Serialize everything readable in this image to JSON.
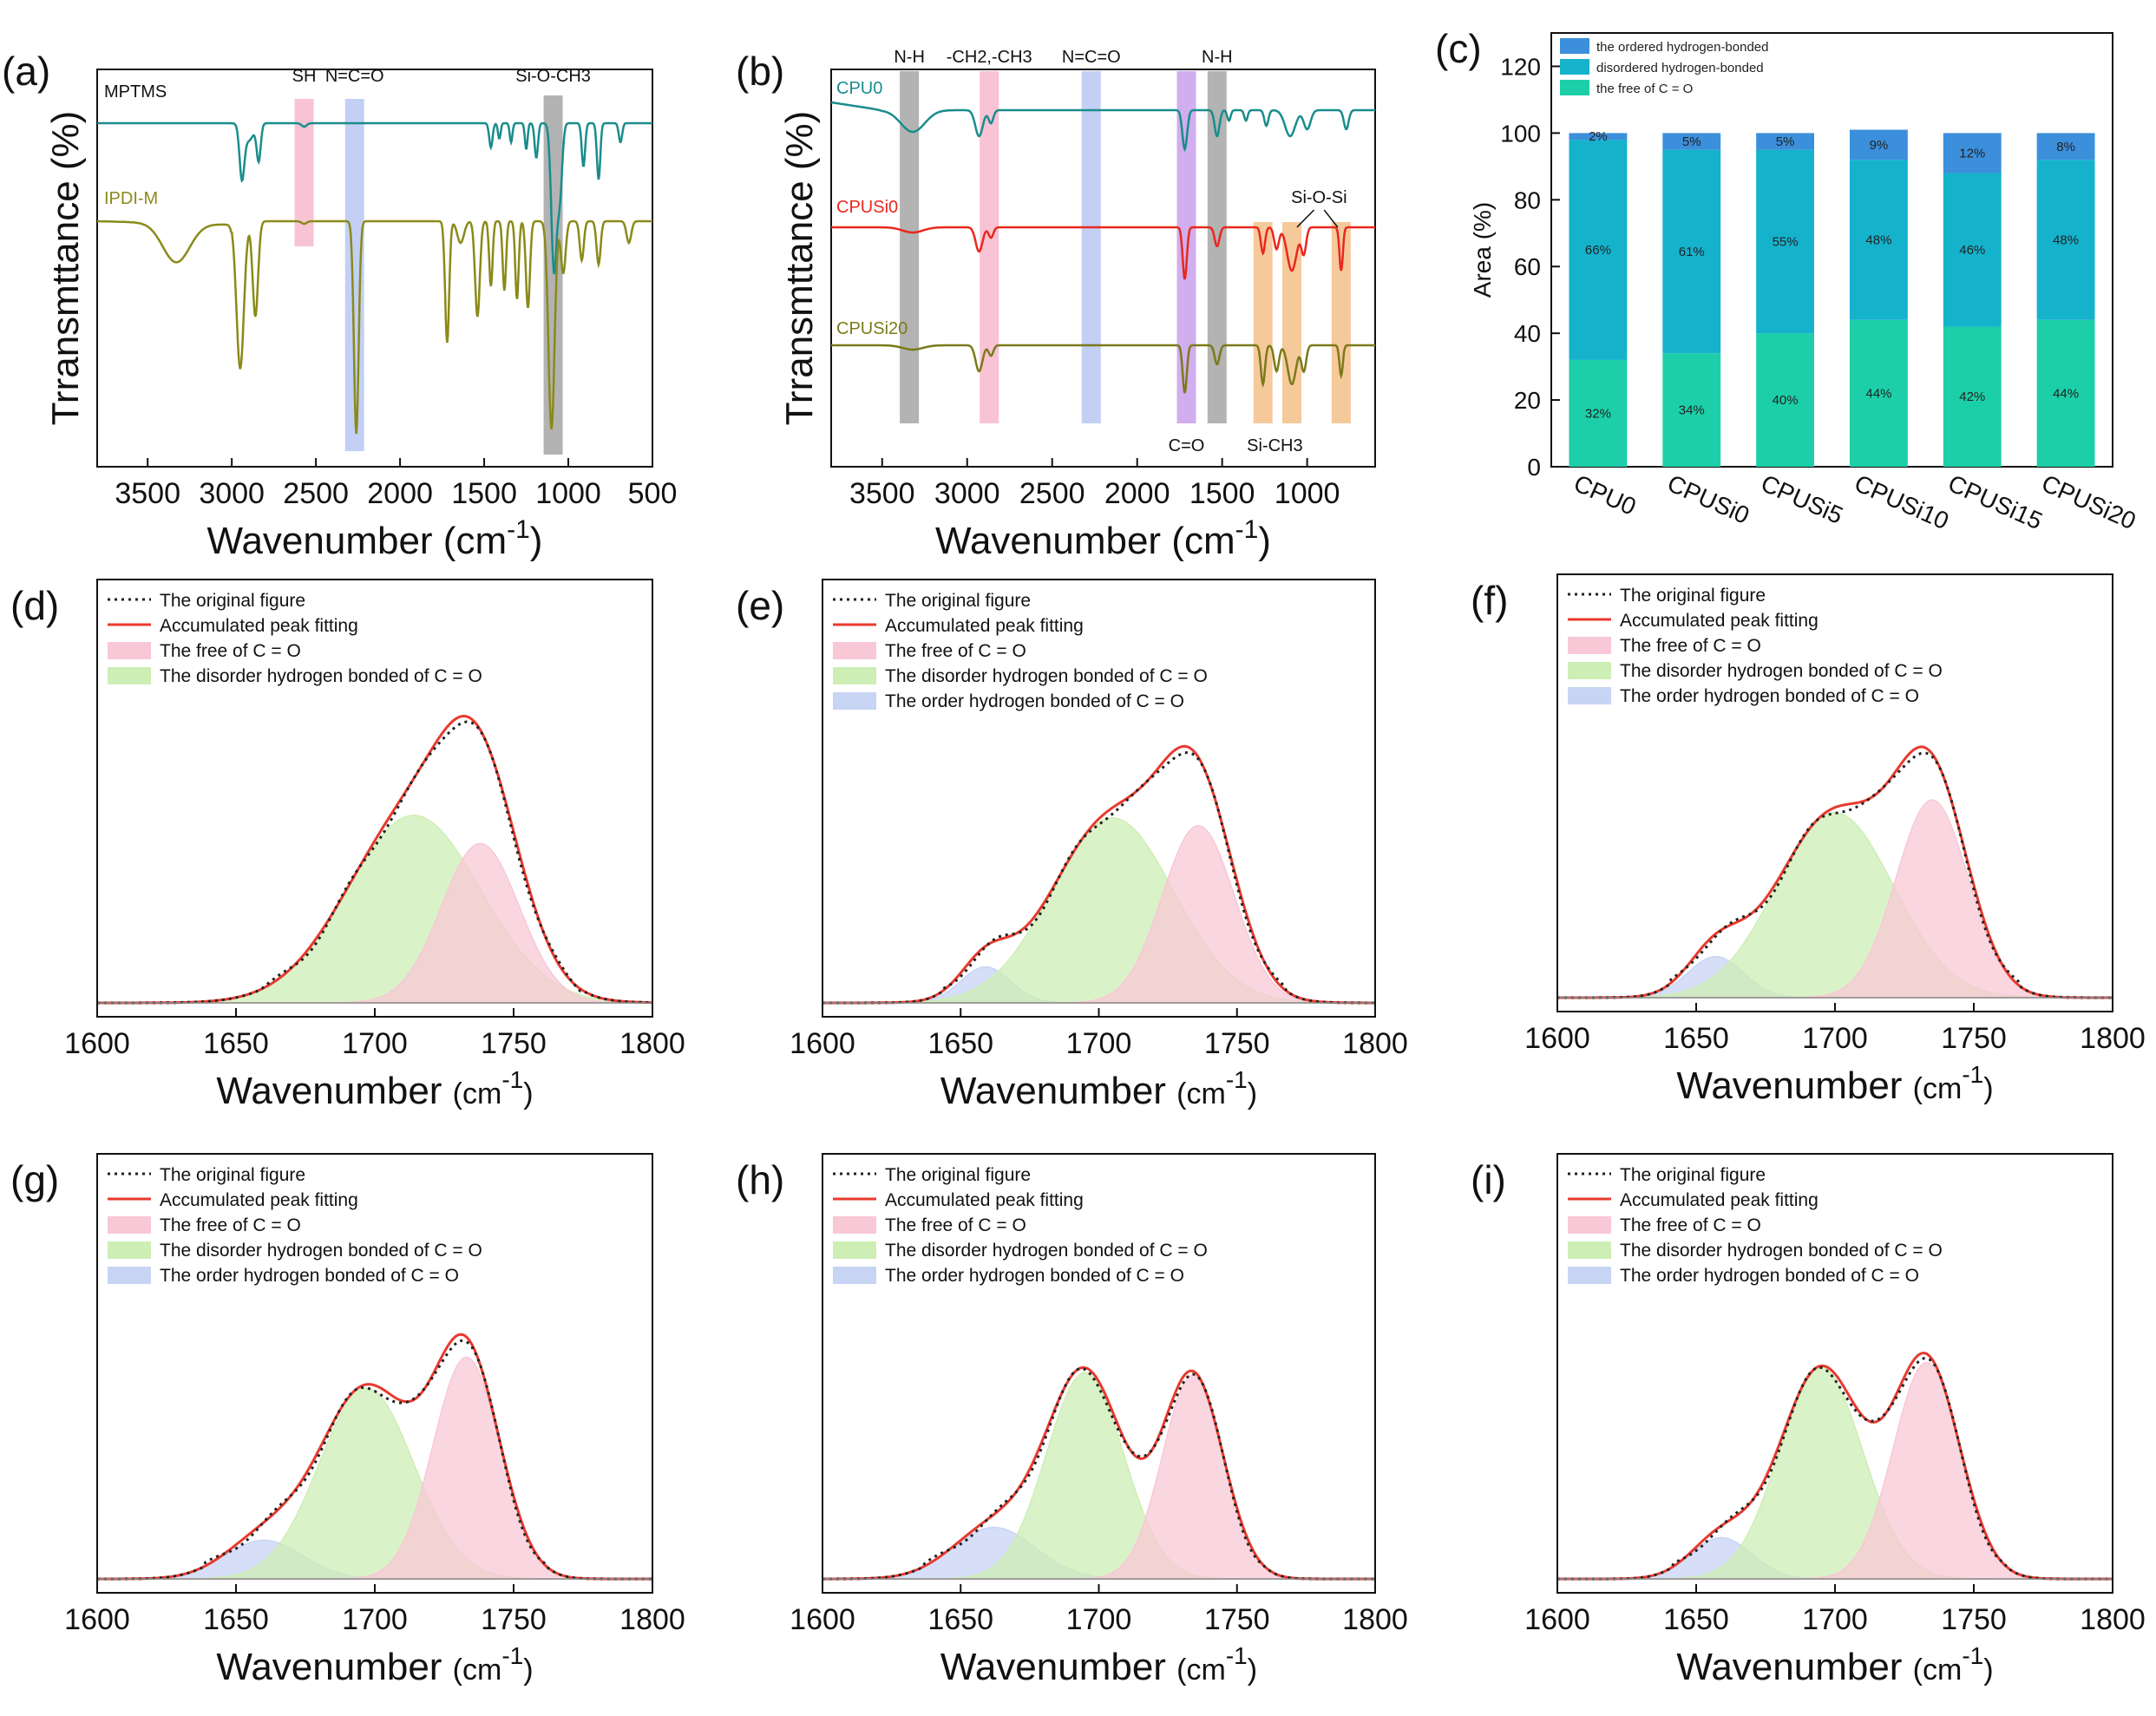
{
  "chart_data": [
    {
      "id": "a",
      "type": "line",
      "panel_label": "(a)",
      "xlabel": "Wavenumber (cm",
      "xlabel_sup": "-1",
      "xlabel_tail": ")",
      "ylabel": "Trransmttance (%)",
      "xlim": [
        3800,
        500
      ],
      "xticks": [
        "3500",
        "3000",
        "2500",
        "2000",
        "1500",
        "1000",
        "500"
      ],
      "series": [
        {
          "name": "MPTMS",
          "color": "#1a8c8c"
        },
        {
          "name": "IPDI-M",
          "color": "#8a8a1a"
        }
      ],
      "bands": [
        {
          "label": "SH",
          "center": 2570,
          "color": "#f7b8cc"
        },
        {
          "label": "N=C=O",
          "center": 2270,
          "color": "#b9c8f2"
        },
        {
          "label": "Si-O-CH3",
          "center": 1090,
          "color": "#a6a6a6"
        }
      ]
    },
    {
      "id": "b",
      "type": "line",
      "panel_label": "(b)",
      "xlabel": "Wavenumber (cm",
      "xlabel_sup": "-1",
      "xlabel_tail": ")",
      "ylabel": "Trransmttance (%)",
      "xlim": [
        3800,
        600
      ],
      "xticks": [
        "3500",
        "3000",
        "2500",
        "2000",
        "1500",
        "1000"
      ],
      "series": [
        {
          "name": "CPU0",
          "color": "#1a8c8c"
        },
        {
          "name": "CPUSi0",
          "color": "#e8281e"
        },
        {
          "name": "CPUSi20",
          "color": "#7a7a1a"
        }
      ],
      "bands": [
        {
          "label": "N-H",
          "center": 3340,
          "color": "#a6a6a6"
        },
        {
          "label": "-CH2,-CH3",
          "center": 2870,
          "color": "#f7b8cc"
        },
        {
          "label": "N=C=O",
          "center": 2270,
          "color": "#b9c8f2"
        },
        {
          "label": "C=O",
          "center": 1710,
          "color": "#c9a0ea"
        },
        {
          "label": "N-H",
          "center": 1530,
          "color": "#a6a6a6"
        },
        {
          "label": "Si-CH3",
          "center": 1260,
          "color": "#f5c08a"
        },
        {
          "label": "Si-O-Si",
          "center": 1090,
          "color": "#f5c08a"
        },
        {
          "label": "",
          "center": 800,
          "color": "#f5c08a"
        }
      ]
    },
    {
      "id": "c",
      "type": "bar",
      "panel_label": "(c)",
      "ylabel": "Area (%)",
      "ylim": [
        0,
        130
      ],
      "yticks": [
        "0",
        "20",
        "40",
        "60",
        "80",
        "100",
        "120"
      ],
      "categories": [
        "CPU0",
        "CPUSi0",
        "CPUSi5",
        "CPUSi10",
        "CPUSi15",
        "CPUSi20"
      ],
      "series": [
        {
          "name": "the free of C = O",
          "color": "#1ccfa8",
          "values": [
            32,
            34,
            40,
            44,
            42,
            44
          ],
          "labels": [
            "32%",
            "34%",
            "40%",
            "44%",
            "42%",
            "44%"
          ]
        },
        {
          "name": "disordered  hydrogen-bonded",
          "color": "#15b2cc",
          "values": [
            66,
            61,
            55,
            48,
            46,
            48
          ],
          "labels": [
            "66%",
            "61%",
            "55%",
            "48%",
            "46%",
            "48%"
          ]
        },
        {
          "name": "the  ordered  hydrogen-bonded",
          "color": "#3c8fdb",
          "values": [
            2,
            5,
            5,
            9,
            12,
            8
          ],
          "labels": [
            "2%",
            "5%",
            "5%",
            "9%",
            "12%",
            "8%"
          ]
        }
      ]
    },
    {
      "id": "d",
      "type": "area",
      "panel_label": "(d)",
      "xlim": [
        1600,
        1800
      ],
      "xticks": [
        "1600",
        "1650",
        "1700",
        "1750",
        "1800"
      ],
      "xlabel": "Wavenumber",
      "xunit": "(cm",
      "xsup": "-1",
      "xtail": ")",
      "legend": [
        "The original figure",
        "Accumulated peak fitting",
        "The free of C = O",
        "The disorder hydrogen bonded of C = O"
      ],
      "peaks": {
        "free": {
          "center": 1738,
          "height": 0.62,
          "width": 14
        },
        "disorder": {
          "center": 1714,
          "height": 0.73,
          "width": 24
        },
        "order": null
      }
    },
    {
      "id": "e",
      "type": "area",
      "panel_label": "(e)",
      "xlim": [
        1600,
        1800
      ],
      "xticks": [
        "1600",
        "1650",
        "1700",
        "1750",
        "1800"
      ],
      "xlabel": "Wavenumber",
      "xunit": "(cm",
      "xsup": "-1",
      "xtail": ")",
      "legend": [
        "The original figure",
        "Accumulated peak fitting",
        "The free of C = O",
        "The disorder hydrogen bonded of C = O",
        "The order hydrogen bonded of C = O"
      ],
      "peaks": {
        "free": {
          "center": 1736,
          "height": 0.69,
          "width": 13
        },
        "disorder": {
          "center": 1705,
          "height": 0.72,
          "width": 22
        },
        "order": {
          "center": 1659,
          "height": 0.14,
          "width": 9
        }
      }
    },
    {
      "id": "f",
      "type": "area",
      "panel_label": "(f)",
      "xlim": [
        1600,
        1800
      ],
      "xticks": [
        "1600",
        "1650",
        "1700",
        "1750",
        "1800"
      ],
      "xlabel": "Wavenumber",
      "xunit": "(cm",
      "xsup": "-1",
      "xtail": ")",
      "legend": [
        "The original figure",
        "Accumulated peak fitting",
        "The free of C = O",
        "The disorder hydrogen bonded of C = O",
        "The order hydrogen bonded of C = O"
      ],
      "peaks": {
        "free": {
          "center": 1735,
          "height": 0.77,
          "width": 13
        },
        "disorder": {
          "center": 1700,
          "height": 0.72,
          "width": 21
        },
        "order": {
          "center": 1657,
          "height": 0.16,
          "width": 10
        }
      }
    },
    {
      "id": "g",
      "type": "area",
      "panel_label": "(g)",
      "xlim": [
        1600,
        1800
      ],
      "xticks": [
        "1600",
        "1650",
        "1700",
        "1750",
        "1800"
      ],
      "xlabel": "Wavenumber",
      "xunit": "(cm",
      "xsup": "-1",
      "xtail": ")",
      "legend": [
        "The original figure",
        "Accumulated peak fitting",
        "The free of C = O",
        "The disorder hydrogen bonded of C = O",
        "The order hydrogen bonded of C = O"
      ],
      "peaks": {
        "free": {
          "center": 1733,
          "height": 0.86,
          "width": 12
        },
        "disorder": {
          "center": 1697,
          "height": 0.74,
          "width": 17
        },
        "order": {
          "center": 1660,
          "height": 0.15,
          "width": 14
        }
      }
    },
    {
      "id": "h",
      "type": "area",
      "panel_label": "(h)",
      "xlim": [
        1600,
        1800
      ],
      "xticks": [
        "1600",
        "1650",
        "1700",
        "1750",
        "1800"
      ],
      "xlabel": "Wavenumber",
      "xunit": "(cm",
      "xsup": "-1",
      "xtail": ")",
      "legend": [
        "The original figure",
        "Accumulated peak fitting",
        "The free of C = O",
        "The disorder hydrogen bonded of C = O",
        "The order hydrogen bonded of C = O"
      ],
      "peaks": {
        "free": {
          "center": 1734,
          "height": 0.79,
          "width": 11
        },
        "disorder": {
          "center": 1695,
          "height": 0.8,
          "width": 14
        },
        "order": {
          "center": 1662,
          "height": 0.2,
          "width": 15
        }
      }
    },
    {
      "id": "i",
      "type": "area",
      "panel_label": "(i)",
      "xlim": [
        1600,
        1800
      ],
      "xticks": [
        "1600",
        "1650",
        "1700",
        "1750",
        "1800"
      ],
      "xlabel": "Wavenumber",
      "xunit": "(cm",
      "xsup": "-1",
      "xtail": ")",
      "legend": [
        "The original figure",
        "Accumulated peak fitting",
        "The free of C = O",
        "The disorder hydrogen bonded of C = O",
        "The order hydrogen bonded of C = O"
      ],
      "peaks": {
        "free": {
          "center": 1733,
          "height": 0.84,
          "width": 12
        },
        "disorder": {
          "center": 1695,
          "height": 0.82,
          "width": 15
        },
        "order": {
          "center": 1659,
          "height": 0.16,
          "width": 11
        }
      }
    }
  ],
  "colors": {
    "free_fill": "#f8c8d6",
    "disorder_fill": "#cdeeb5",
    "order_fill": "#c8d4f4",
    "fit_line": "#e83a2e",
    "orig_line": "#222222"
  }
}
